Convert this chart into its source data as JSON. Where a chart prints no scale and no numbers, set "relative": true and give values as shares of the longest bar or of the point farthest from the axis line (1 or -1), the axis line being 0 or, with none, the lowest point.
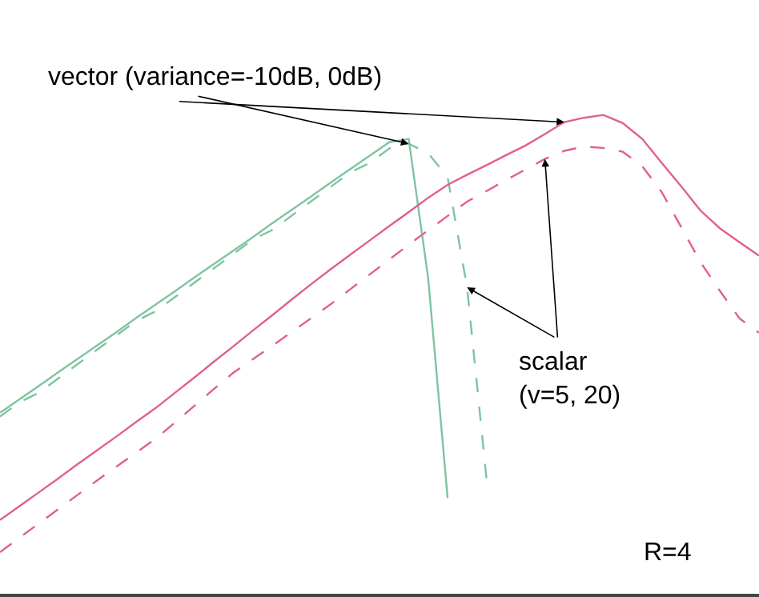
{
  "chart_data": {
    "type": "line",
    "relative": true,
    "categories": [
      null,
      null,
      null,
      null,
      null,
      null,
      null,
      null,
      null,
      null,
      null,
      null,
      null,
      null,
      null,
      null,
      null,
      null,
      null,
      null,
      null,
      null,
      null,
      null,
      null,
      null,
      null,
      null,
      null,
      null,
      null,
      null,
      null,
      null,
      null,
      null,
      null,
      null,
      null,
      null
    ],
    "series": [
      {
        "color": "#7fc4a0",
        "line_style": "solid",
        "values": [
          0.378,
          0.406,
          0.434,
          0.463,
          0.491,
          0.519,
          0.547,
          0.576,
          0.604,
          0.632,
          0.661,
          0.689,
          0.717,
          0.745,
          0.774,
          0.802,
          0.83,
          0.859,
          0.887,
          0.915,
          0.943,
          0.95,
          0.66,
          0.2,
          null,
          null,
          null,
          null,
          null,
          null,
          null,
          null,
          null,
          null,
          null,
          null,
          null,
          null,
          null,
          null
        ]
      },
      {
        "color": "#7fc4a0",
        "line_style": "dashed",
        "values": [
          0.37,
          0.4,
          0.42,
          0.45,
          0.48,
          0.51,
          0.54,
          0.57,
          0.59,
          0.62,
          0.65,
          0.68,
          0.71,
          0.74,
          0.76,
          0.79,
          0.82,
          0.85,
          0.88,
          0.9,
          0.93,
          0.94,
          0.92,
          0.87,
          0.64,
          0.24,
          null,
          null,
          null,
          null,
          null,
          null,
          null,
          null,
          null,
          null,
          null,
          null,
          null,
          null
        ]
      },
      {
        "color": "#e0608f",
        "line_style": "solid",
        "values": [
          0.154,
          0.183,
          0.212,
          0.241,
          0.271,
          0.3,
          0.329,
          0.359,
          0.388,
          0.42,
          0.452,
          0.485,
          0.517,
          0.55,
          0.582,
          0.615,
          0.647,
          0.678,
          0.708,
          0.738,
          0.768,
          0.797,
          0.827,
          0.854,
          0.875,
          0.895,
          0.916,
          0.936,
          0.96,
          0.985,
          0.994,
          1.0,
          0.983,
          0.95,
          0.9,
          0.851,
          0.8,
          0.763,
          0.734,
          0.706
        ]
      },
      {
        "color": "#e0608f",
        "line_style": "dashed",
        "values": [
          0.087,
          0.117,
          0.147,
          0.177,
          0.207,
          0.237,
          0.266,
          0.295,
          0.324,
          0.358,
          0.393,
          0.428,
          0.462,
          0.49,
          0.518,
          0.547,
          0.576,
          0.605,
          0.636,
          0.667,
          0.698,
          0.729,
          0.759,
          0.789,
          0.819,
          0.841,
          0.864,
          0.886,
          0.908,
          0.925,
          0.934,
          0.931,
          0.923,
          0.893,
          0.839,
          0.766,
          0.692,
          0.632,
          0.575,
          0.545
        ]
      }
    ],
    "annotations": [
      "vector (variance=-10dB, 0dB)",
      "scalar\n(v=5, 20)",
      "R=4"
    ]
  }
}
